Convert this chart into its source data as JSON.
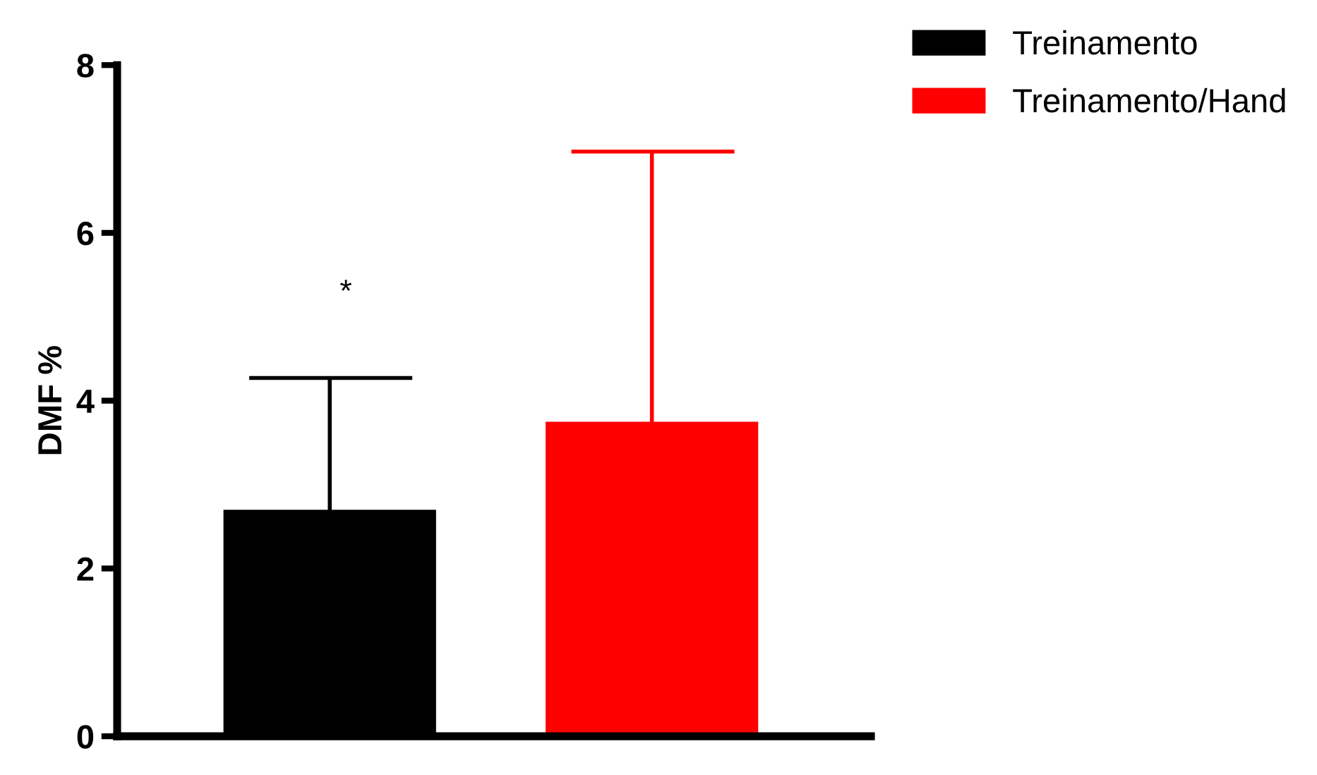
{
  "chart_data": {
    "type": "bar",
    "ylabel": "DMF %",
    "categories": [
      null,
      null
    ],
    "series": [
      {
        "name": "Treinamento",
        "color": "#000000",
        "values": [
          2.7,
          null
        ],
        "errors": [
          [
            2.7,
            4.27
          ],
          null
        ]
      },
      {
        "name": "Treinamento/Hand",
        "color": "#ff0000",
        "values": [
          null,
          3.75
        ],
        "errors": [
          null,
          [
            3.75,
            6.97
          ]
        ]
      }
    ],
    "ylim": [
      0,
      8
    ],
    "yticks": [
      0,
      2,
      4,
      6,
      8
    ],
    "annotations": [
      "*"
    ],
    "legend": "top right",
    "grid": false
  }
}
